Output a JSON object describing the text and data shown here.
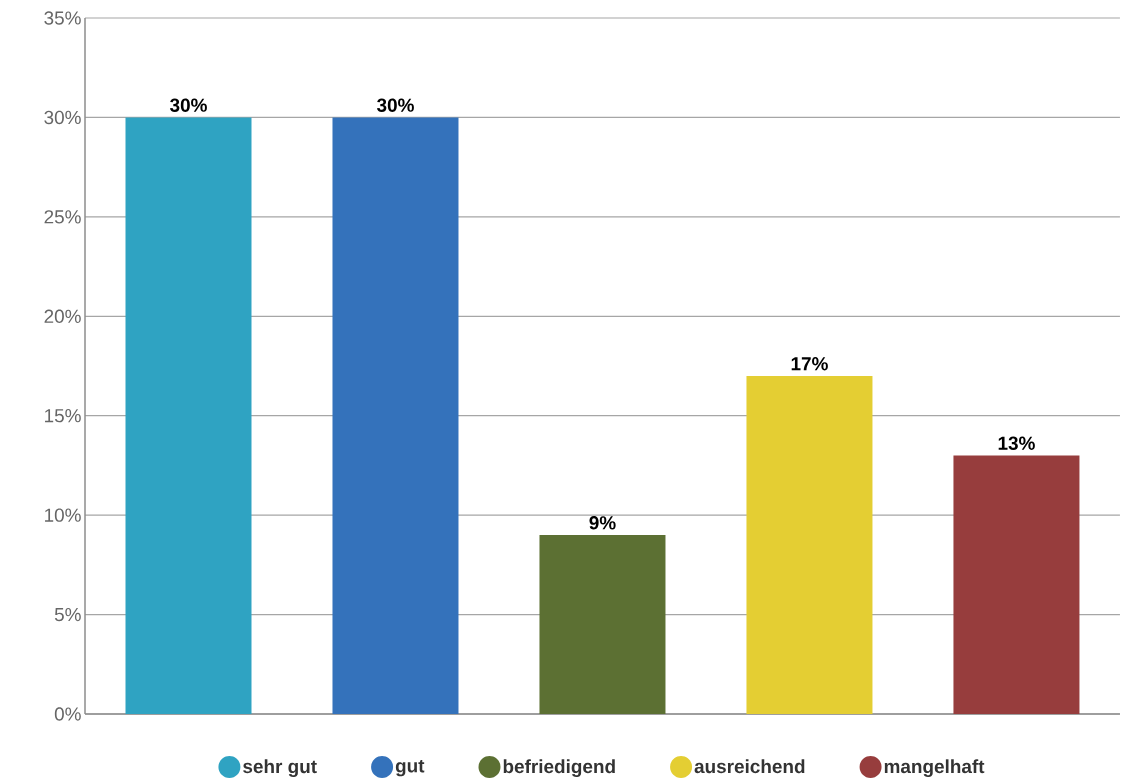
{
  "chart_data": {
    "type": "bar",
    "categories": [
      null,
      null,
      null,
      null,
      null
    ],
    "series": [
      {
        "name": "sehr gut",
        "color": "#2fa3c2",
        "values": [
          30,
          null,
          null,
          null,
          null
        ],
        "value_labels": [
          "30%",
          null,
          null,
          null,
          null
        ]
      },
      {
        "name": "gut",
        "color": "#3472bb",
        "values": [
          null,
          30,
          null,
          null,
          null
        ],
        "value_labels": [
          null,
          "30%",
          null,
          null,
          null
        ]
      },
      {
        "name": "befriedigend",
        "color": "#5c7033",
        "values": [
          null,
          null,
          9,
          null,
          null
        ],
        "value_labels": [
          null,
          null,
          "9%",
          null,
          null
        ]
      },
      {
        "name": "ausreichend",
        "color": "#e4ce33",
        "values": [
          null,
          null,
          null,
          17,
          null
        ],
        "value_labels": [
          null,
          null,
          null,
          "17%",
          null
        ]
      },
      {
        "name": "mangelhaft",
        "color": "#973d3d",
        "values": [
          null,
          null,
          null,
          null,
          13
        ],
        "value_labels": [
          null,
          null,
          null,
          null,
          "13%"
        ]
      }
    ],
    "ylim": [
      0,
      35
    ],
    "yticks": [
      {
        "value": 0,
        "label": "0%"
      },
      {
        "value": 5,
        "label": "5%"
      },
      {
        "value": 10,
        "label": "10%"
      },
      {
        "value": 15,
        "label": "15%"
      },
      {
        "value": 20,
        "label": "20%"
      },
      {
        "value": 25,
        "label": "25%"
      },
      {
        "value": 30,
        "label": "30%"
      },
      {
        "value": 35,
        "label": "35%"
      }
    ],
    "grid": "y",
    "legend": "bottom",
    "tick_labels": "y"
  }
}
